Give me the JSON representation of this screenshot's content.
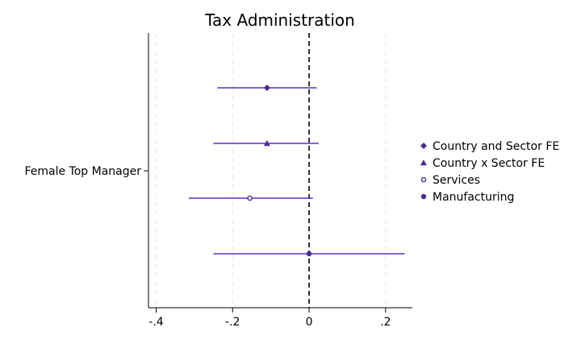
{
  "chart_data": {
    "type": "scatter",
    "title": "Tax Administration",
    "xlabel": "",
    "ylabel": "",
    "xlim": [
      -0.42,
      0.27
    ],
    "x_ticks": [
      -0.4,
      -0.2,
      0,
      0.2
    ],
    "x_tick_labels": [
      "-.4",
      "-.2",
      "0",
      ".2"
    ],
    "y_category": "Female Top Manager",
    "grid": "vertical dashed",
    "reference_line": 0,
    "legend_position": "right",
    "series": [
      {
        "name": "Country and Sector FE",
        "marker": "diamond",
        "estimate": -0.11,
        "ci_low": -0.24,
        "ci_high": 0.02
      },
      {
        "name": "Country x Sector FE",
        "marker": "triangle",
        "estimate": -0.11,
        "ci_low": -0.25,
        "ci_high": 0.025
      },
      {
        "name": "Services",
        "marker": "hollow-circle",
        "estimate": -0.155,
        "ci_low": -0.315,
        "ci_high": 0.01
      },
      {
        "name": "Manufacturing",
        "marker": "circle",
        "estimate": 0.0,
        "ci_low": -0.25,
        "ci_high": 0.25
      }
    ],
    "colors": {
      "series": "#5b2ec4",
      "marker_fill": "#4b2a8f",
      "zero_line": "#000000",
      "grid": "#e6e6e6"
    }
  }
}
